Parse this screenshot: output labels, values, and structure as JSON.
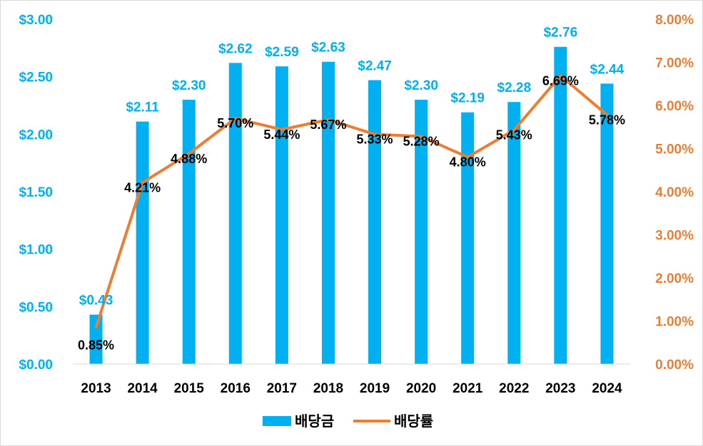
{
  "chart_data": {
    "type": "bar",
    "categories": [
      "2013",
      "2014",
      "2015",
      "2016",
      "2017",
      "2018",
      "2019",
      "2020",
      "2021",
      "2022",
      "2023",
      "2024"
    ],
    "series": [
      {
        "name": "배당금",
        "kind": "bar",
        "axis": "left",
        "color": "#00b0f0",
        "values": [
          0.43,
          2.11,
          2.3,
          2.62,
          2.59,
          2.63,
          2.47,
          2.3,
          2.19,
          2.28,
          2.76,
          2.44
        ],
        "labels": [
          "$0.43",
          "$2.11",
          "$2.30",
          "$2.62",
          "$2.59",
          "$2.63",
          "$2.47",
          "$2.30",
          "$2.19",
          "$2.28",
          "$2.76",
          "$2.44"
        ]
      },
      {
        "name": "배당률",
        "kind": "line",
        "axis": "right",
        "color": "#ed7d31",
        "values": [
          0.85,
          4.21,
          4.88,
          5.7,
          5.44,
          5.67,
          5.33,
          5.28,
          4.8,
          5.43,
          6.69,
          5.78
        ],
        "labels": [
          "0.85%",
          "4.21%",
          "4.88%",
          "5.70%",
          "5.44%",
          "5.67%",
          "5.33%",
          "5.28%",
          "4.80%",
          "5.43%",
          "6.69%",
          "5.78%"
        ]
      }
    ],
    "y_left": {
      "range": [
        0,
        3
      ],
      "ticks": [
        0,
        0.5,
        1,
        1.5,
        2,
        2.5,
        3
      ],
      "tick_labels": [
        "$0.00",
        "$0.50",
        "$1.00",
        "$1.50",
        "$2.00",
        "$2.50",
        "$3.00"
      ],
      "color": "#00b0f0"
    },
    "y_right": {
      "range": [
        0,
        8
      ],
      "ticks": [
        0,
        1,
        2,
        3,
        4,
        5,
        6,
        7,
        8
      ],
      "tick_labels": [
        "0.00%",
        "1.00%",
        "2.00%",
        "3.00%",
        "4.00%",
        "5.00%",
        "6.00%",
        "7.00%",
        "8.00%"
      ],
      "color": "#ed7d31"
    },
    "title": "",
    "xlabel": "",
    "ylabel": "",
    "grid": false,
    "legend_position": "bottom"
  }
}
